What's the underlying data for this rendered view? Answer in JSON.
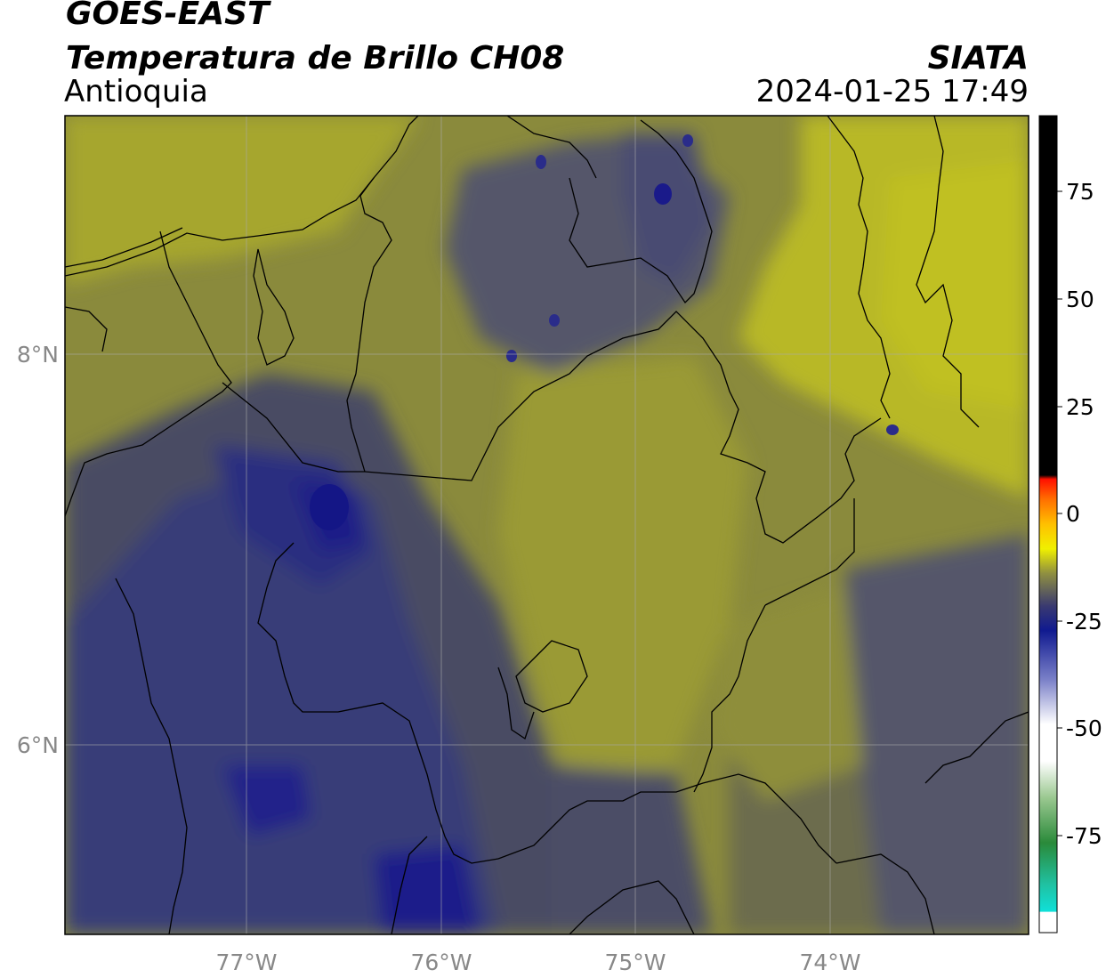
{
  "header": {
    "satellite": "GOES-EAST",
    "product": "Temperatura de Brillo CH08",
    "region": "Antioquia",
    "agency": "SIATA",
    "datetime": "2024-01-25 17:49"
  },
  "map": {
    "lon_ticks": [
      "77°W",
      "76°W",
      "75°W",
      "74°W"
    ],
    "lat_ticks": [
      "8°N",
      "6°N"
    ],
    "colors": {
      "yellow_bright": "#b8b828",
      "yellow_olive": "#9a9a32",
      "olive": "#86863e",
      "olive_dark": "#6c6c44",
      "grey_blue": "#4e4f5a",
      "blue_grey": "#3e4170",
      "navy": "#28287a",
      "deep_blue": "#101080",
      "border": "#000000",
      "grid": "#aaaaaa"
    }
  },
  "colorbar": {
    "ticks": [
      "75",
      "50",
      "25",
      "0",
      "-25",
      "-50",
      "-75"
    ]
  }
}
